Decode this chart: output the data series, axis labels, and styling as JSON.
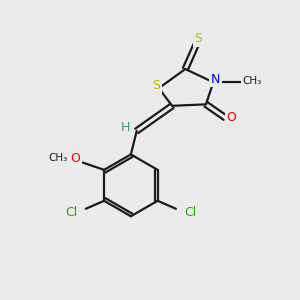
{
  "bg_color": "#ebebeb",
  "bond_color": "#1a1a1a",
  "S_color": "#b8b800",
  "N_color": "#0000ee",
  "O_color": "#ee0000",
  "Cl_color": "#22aa00",
  "H_color": "#4a9090",
  "figsize": [
    3.0,
    3.0
  ],
  "dpi": 100,
  "xlim": [
    0,
    10
  ],
  "ylim": [
    0,
    10
  ],
  "bond_lw": 1.6,
  "font_size": 9
}
